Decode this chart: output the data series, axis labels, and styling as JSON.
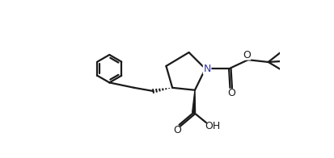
{
  "background_color": "#ffffff",
  "line_color": "#1a1a1a",
  "nitrogen_color": "#3333aa",
  "line_width": 1.6,
  "figsize": [
    4.14,
    1.96
  ],
  "dpi": 100,
  "xlim": [
    0,
    10
  ],
  "ylim": [
    -2.5,
    4.5
  ]
}
